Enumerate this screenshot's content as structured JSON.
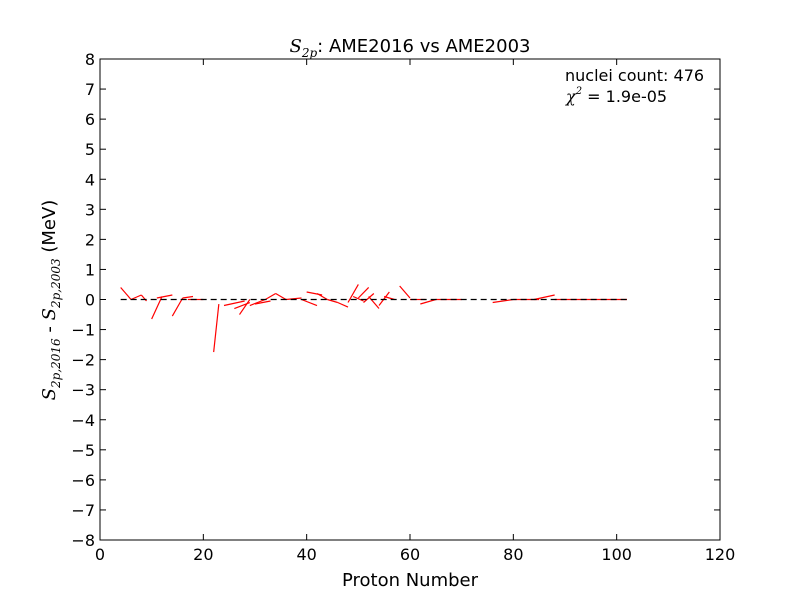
{
  "chart_data": {
    "type": "line",
    "title_prefix": "S",
    "title_sub": "2p",
    "title_rest": ":  AME2016 vs AME2003",
    "xlabel": "Proton Number",
    "ylabel_a": "S",
    "ylabel_a_sub": "2p,2016",
    "ylabel_mid": " - ",
    "ylabel_b": "S",
    "ylabel_b_sub": "2p,2003",
    "ylabel_unit": " (MeV)",
    "xlim": [
      0,
      120
    ],
    "ylim": [
      -8,
      8
    ],
    "xticks": [
      0,
      20,
      40,
      60,
      80,
      100,
      120
    ],
    "yticks": [
      -8,
      -7,
      -6,
      -5,
      -4,
      -3,
      -2,
      -1,
      0,
      1,
      2,
      3,
      4,
      5,
      6,
      7,
      8
    ],
    "annotation_count": "nuclei count: 476",
    "annotation_chi_symbol": "χ",
    "annotation_chi_sup": "2",
    "annotation_chi_value": " = 1.9e-05",
    "reference_line": {
      "y": 0,
      "x_start": 4,
      "x_end": 102,
      "style": "dashed",
      "color": "#000000"
    },
    "series": [
      {
        "color": "#ff0000",
        "segments": [
          [
            [
              4,
              0.4
            ],
            [
              6,
              0.0
            ]
          ],
          [
            [
              6,
              0.0
            ],
            [
              8,
              0.15
            ]
          ],
          [
            [
              8,
              0.15
            ],
            [
              9,
              -0.05
            ]
          ],
          [
            [
              10,
              -0.65
            ],
            [
              12,
              0.1
            ]
          ],
          [
            [
              11,
              0.05
            ],
            [
              14,
              0.15
            ]
          ],
          [
            [
              14,
              -0.55
            ],
            [
              16,
              0.05
            ]
          ],
          [
            [
              16,
              0.05
            ],
            [
              18,
              0.1
            ]
          ],
          [
            [
              17,
              0.0
            ],
            [
              20,
              0.0
            ]
          ],
          [
            [
              22,
              -1.75
            ],
            [
              23,
              -0.15
            ]
          ],
          [
            [
              24,
              -0.2
            ],
            [
              28,
              -0.05
            ]
          ],
          [
            [
              26,
              -0.3
            ],
            [
              29,
              -0.1
            ]
          ],
          [
            [
              27,
              -0.5
            ],
            [
              29,
              0.0
            ]
          ],
          [
            [
              29,
              -0.2
            ],
            [
              32,
              0.0
            ]
          ],
          [
            [
              30,
              -0.15
            ],
            [
              33,
              -0.05
            ]
          ],
          [
            [
              32,
              0.0
            ],
            [
              34,
              0.2
            ]
          ],
          [
            [
              34,
              0.2
            ],
            [
              36,
              0.0
            ]
          ],
          [
            [
              36,
              0.0
            ],
            [
              39,
              0.05
            ]
          ],
          [
            [
              39,
              0.0
            ],
            [
              42,
              -0.2
            ]
          ],
          [
            [
              40,
              0.25
            ],
            [
              43,
              0.15
            ]
          ],
          [
            [
              42,
              0.2
            ],
            [
              44,
              0.0
            ]
          ],
          [
            [
              44,
              0.0
            ],
            [
              46,
              -0.1
            ]
          ],
          [
            [
              46,
              -0.1
            ],
            [
              48,
              -0.25
            ]
          ],
          [
            [
              48,
              -0.1
            ],
            [
              50,
              0.5
            ]
          ],
          [
            [
              49,
              0.1
            ],
            [
              51,
              -0.05
            ]
          ],
          [
            [
              50,
              0.05
            ],
            [
              52,
              0.4
            ]
          ],
          [
            [
              51,
              -0.1
            ],
            [
              53,
              0.2
            ]
          ],
          [
            [
              52,
              0.1
            ],
            [
              54,
              -0.3
            ]
          ],
          [
            [
              54,
              -0.2
            ],
            [
              56,
              0.25
            ]
          ],
          [
            [
              55,
              0.1
            ],
            [
              57,
              0.0
            ]
          ],
          [
            [
              58,
              0.45
            ],
            [
              60,
              0.05
            ]
          ],
          [
            [
              60,
              0.0
            ],
            [
              63,
              0.0
            ]
          ],
          [
            [
              62,
              -0.15
            ],
            [
              65,
              0.0
            ]
          ],
          [
            [
              65,
              0.0
            ],
            [
              70,
              0.0
            ]
          ],
          [
            [
              76,
              -0.1
            ],
            [
              80,
              0.0
            ]
          ],
          [
            [
              80,
              0.0
            ],
            [
              85,
              0.0
            ]
          ],
          [
            [
              84,
              0.0
            ],
            [
              88,
              0.15
            ]
          ],
          [
            [
              88,
              0.0
            ],
            [
              95,
              0.0
            ]
          ],
          [
            [
              95,
              0.0
            ],
            [
              102,
              0.0
            ]
          ]
        ]
      }
    ],
    "grid": false,
    "legend": "none"
  }
}
